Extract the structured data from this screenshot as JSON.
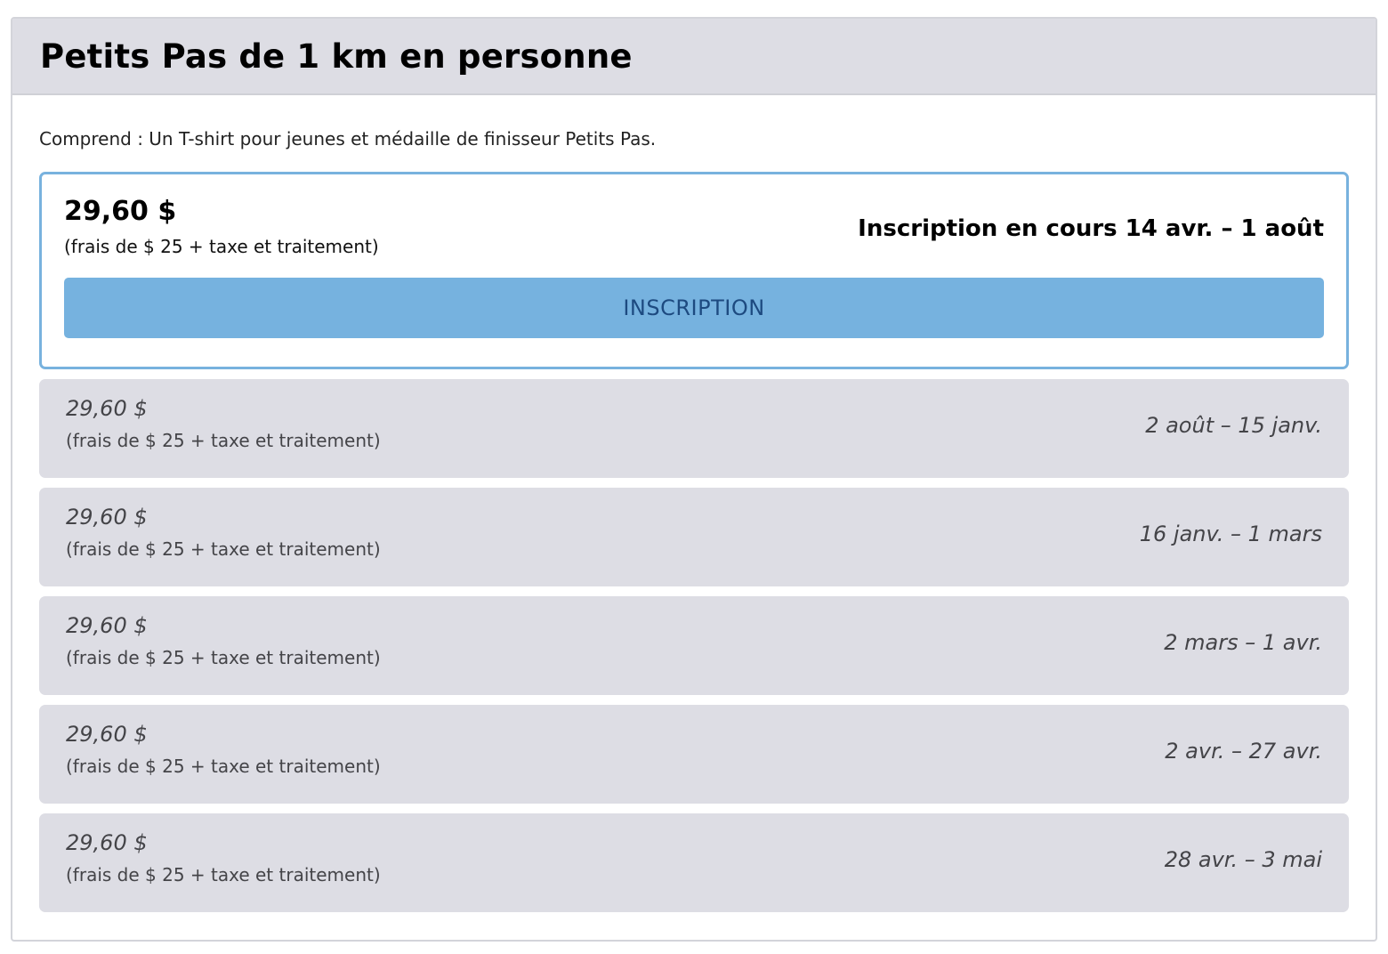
{
  "event": {
    "title": "Petits Pas de 1 km en personne",
    "includes": "Comprend : Un T-shirt pour jeunes et médaille de finisseur Petits Pas."
  },
  "active_tier": {
    "price": "29,60 $",
    "fee": "(frais de $ 25 + taxe et traitement)",
    "status": "Inscription en cours 14 avr. – 1 août",
    "button_label": "INSCRIPTION"
  },
  "future_tiers": [
    {
      "price": "29,60 $",
      "fee": "(frais de $ 25 + taxe et traitement)",
      "dates": "2 août – 15 janv."
    },
    {
      "price": "29,60 $",
      "fee": "(frais de $ 25 + taxe et traitement)",
      "dates": "16 janv. – 1 mars"
    },
    {
      "price": "29,60 $",
      "fee": "(frais de $ 25 + taxe et traitement)",
      "dates": "2 mars – 1 avr."
    },
    {
      "price": "29,60 $",
      "fee": "(frais de $ 25 + taxe et traitement)",
      "dates": "2 avr. – 27 avr."
    },
    {
      "price": "29,60 $",
      "fee": "(frais de $ 25 + taxe et traitement)",
      "dates": "28 avr. – 3 mai"
    }
  ],
  "colors": {
    "header_bg": "#dddde4",
    "accent_border": "#78b2de",
    "button_bg": "#76b2df",
    "button_text": "#1d4a80",
    "inactive_tier_bg": "#dddde4"
  }
}
